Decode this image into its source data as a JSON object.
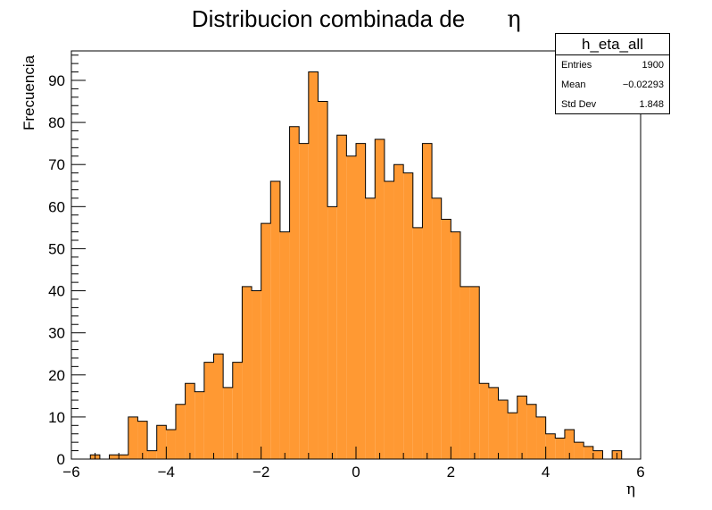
{
  "chart_data": {
    "type": "histogram",
    "title": "Distribucion combinada de",
    "title_symbol": "η",
    "xlabel": "η",
    "ylabel": "Frecuencia",
    "xlim": [
      -6,
      6
    ],
    "ylim": [
      0,
      97
    ],
    "bin_width": 0.2,
    "x_ticks": [
      "−6",
      "−4",
      "−2",
      "0",
      "2",
      "4",
      "6"
    ],
    "x_tick_values": [
      -6,
      -4,
      -2,
      0,
      2,
      4,
      6
    ],
    "y_ticks": [
      "0",
      "10",
      "20",
      "30",
      "40",
      "50",
      "60",
      "70",
      "80",
      "90"
    ],
    "y_tick_values": [
      0,
      10,
      20,
      30,
      40,
      50,
      60,
      70,
      80,
      90
    ],
    "bins": [
      {
        "x0": -5.6,
        "count": 1
      },
      {
        "x0": -5.4,
        "count": 0
      },
      {
        "x0": -5.2,
        "count": 1
      },
      {
        "x0": -5.0,
        "count": 1
      },
      {
        "x0": -4.8,
        "count": 10
      },
      {
        "x0": -4.6,
        "count": 9
      },
      {
        "x0": -4.4,
        "count": 2
      },
      {
        "x0": -4.2,
        "count": 8
      },
      {
        "x0": -4.0,
        "count": 7
      },
      {
        "x0": -3.8,
        "count": 13
      },
      {
        "x0": -3.6,
        "count": 18
      },
      {
        "x0": -3.4,
        "count": 16
      },
      {
        "x0": -3.2,
        "count": 23
      },
      {
        "x0": -3.0,
        "count": 25
      },
      {
        "x0": -2.8,
        "count": 17
      },
      {
        "x0": -2.6,
        "count": 23
      },
      {
        "x0": -2.4,
        "count": 41
      },
      {
        "x0": -2.2,
        "count": 40
      },
      {
        "x0": -2.0,
        "count": 56
      },
      {
        "x0": -1.8,
        "count": 66
      },
      {
        "x0": -1.6,
        "count": 54
      },
      {
        "x0": -1.4,
        "count": 79
      },
      {
        "x0": -1.2,
        "count": 75
      },
      {
        "x0": -1.0,
        "count": 92
      },
      {
        "x0": -0.8,
        "count": 85
      },
      {
        "x0": -0.6,
        "count": 60
      },
      {
        "x0": -0.4,
        "count": 77
      },
      {
        "x0": -0.2,
        "count": 72
      },
      {
        "x0": 0.0,
        "count": 75
      },
      {
        "x0": 0.2,
        "count": 62
      },
      {
        "x0": 0.4,
        "count": 76
      },
      {
        "x0": 0.6,
        "count": 66
      },
      {
        "x0": 0.8,
        "count": 70
      },
      {
        "x0": 1.0,
        "count": 68
      },
      {
        "x0": 1.2,
        "count": 55
      },
      {
        "x0": 1.4,
        "count": 75
      },
      {
        "x0": 1.6,
        "count": 62
      },
      {
        "x0": 1.8,
        "count": 57
      },
      {
        "x0": 2.0,
        "count": 54
      },
      {
        "x0": 2.2,
        "count": 41
      },
      {
        "x0": 2.4,
        "count": 41
      },
      {
        "x0": 2.6,
        "count": 18
      },
      {
        "x0": 2.8,
        "count": 17
      },
      {
        "x0": 3.0,
        "count": 14
      },
      {
        "x0": 3.2,
        "count": 11
      },
      {
        "x0": 3.4,
        "count": 15
      },
      {
        "x0": 3.6,
        "count": 13
      },
      {
        "x0": 3.8,
        "count": 10
      },
      {
        "x0": 4.0,
        "count": 6
      },
      {
        "x0": 4.2,
        "count": 5
      },
      {
        "x0": 4.4,
        "count": 7
      },
      {
        "x0": 4.6,
        "count": 4
      },
      {
        "x0": 4.8,
        "count": 3
      },
      {
        "x0": 5.0,
        "count": 2
      },
      {
        "x0": 5.2,
        "count": 0
      },
      {
        "x0": 5.4,
        "count": 2
      }
    ],
    "fill_color": "#ff9933",
    "line_color": "#000000",
    "stats": {
      "name": "h_eta_all",
      "entries_label": "Entries",
      "entries": "1900",
      "mean_label": "Mean",
      "mean": "−0.02293",
      "stddev_label": "Std Dev",
      "stddev": "1.848"
    }
  }
}
